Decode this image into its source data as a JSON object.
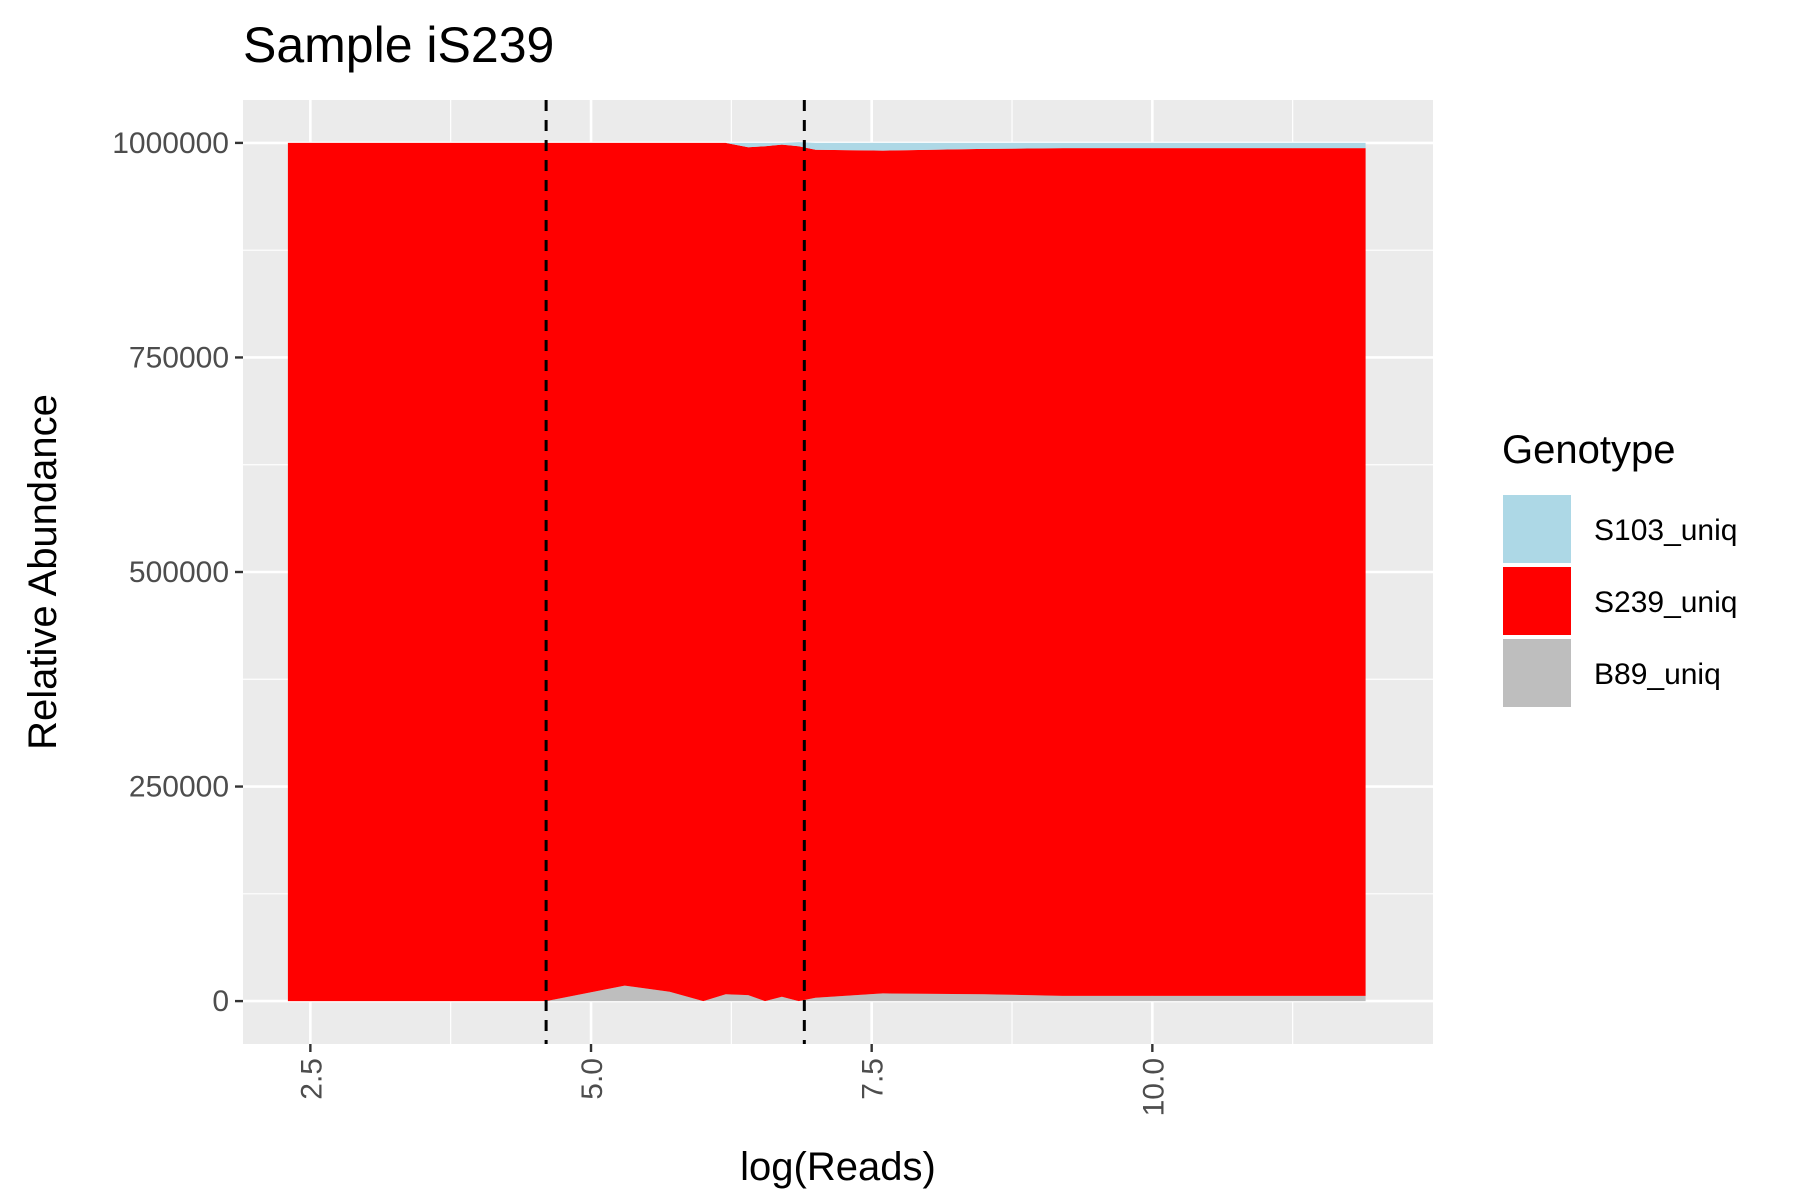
{
  "chart_data": {
    "type": "area",
    "title": "Sample iS239",
    "xlabel": "log(Reads)",
    "ylabel": "Relative Abundance",
    "xlim": [
      1.9,
      12.5
    ],
    "ylim": [
      -50000,
      1050000
    ],
    "x_ticks": [
      2.5,
      5.0,
      7.5,
      10.0
    ],
    "x_tick_labels": [
      "2.5",
      "5.0",
      "7.5",
      "10.0"
    ],
    "y_ticks": [
      0,
      250000,
      500000,
      750000,
      1000000
    ],
    "y_tick_labels": [
      "0",
      "250000",
      "500000",
      "750000",
      "1000000"
    ],
    "grid": true,
    "legend_title": "Genotype",
    "legend_position": "right",
    "vlines": [
      4.6,
      6.9
    ],
    "x": [
      2.3,
      4.6,
      5.3,
      5.7,
      6.0,
      6.2,
      6.4,
      6.55,
      6.7,
      6.85,
      7.0,
      7.6,
      8.5,
      9.2,
      10.5,
      11.9
    ],
    "series": [
      {
        "name": "S103_uniq",
        "color": "#add8e6",
        "values": [
          0,
          0,
          0,
          0,
          0,
          0,
          5000,
          4000,
          2000,
          5000,
          8000,
          9000,
          7000,
          6000,
          6000,
          6000
        ]
      },
      {
        "name": "S239_uniq",
        "color": "#ff0000",
        "values": [
          1000000,
          1000000,
          982000,
          989000,
          1000000,
          992000,
          988000,
          996000,
          993000,
          996000,
          988000,
          982000,
          985000,
          988000,
          988000,
          988000
        ]
      },
      {
        "name": "B89_uniq",
        "color": "#bebebe",
        "values": [
          0,
          0,
          18000,
          11000,
          0,
          8000,
          7000,
          0,
          5000,
          0,
          4000,
          9000,
          8000,
          6000,
          6000,
          6000
        ]
      }
    ],
    "stack_order_bottom_to_top": [
      "B89_uniq",
      "S239_uniq",
      "S103_uniq"
    ]
  }
}
